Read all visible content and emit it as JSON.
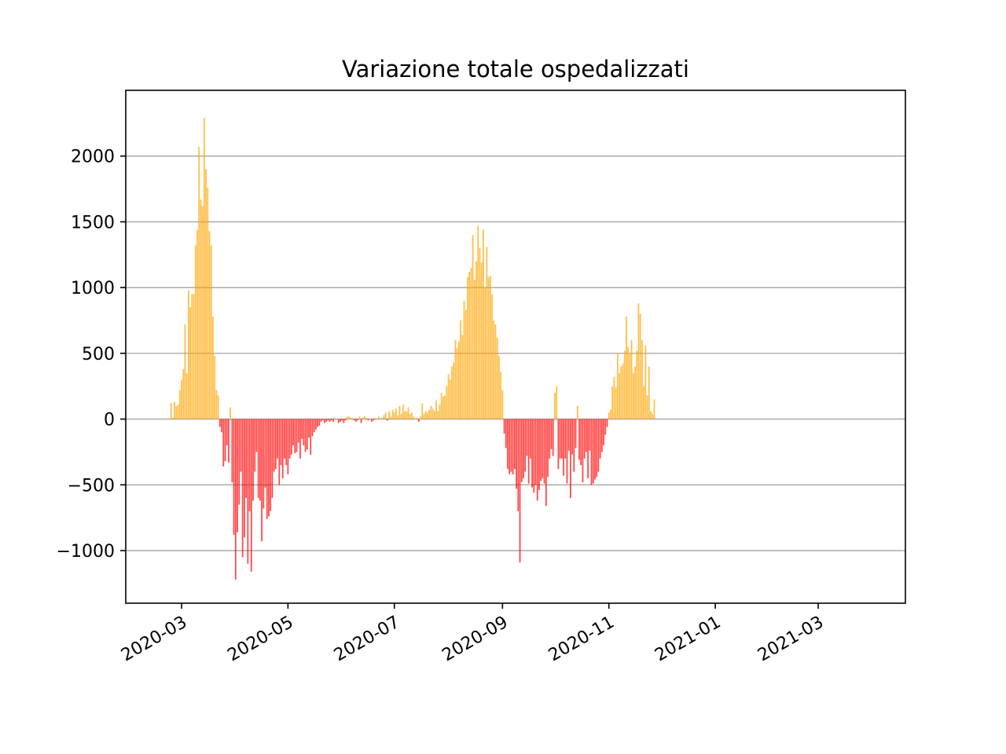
{
  "chart_data": {
    "type": "bar",
    "title": "Variazione totale ospedalizzati",
    "xlabel": "",
    "ylabel": "",
    "x_start": "2020-02-24",
    "x_end": "2021-03-29",
    "xlim": [
      "2020-01-29",
      "2021-04-20"
    ],
    "ylim": [
      -1400,
      2500
    ],
    "grid": {
      "x": false,
      "y": true
    },
    "yticks": [
      -1000,
      -500,
      0,
      500,
      1000,
      1500,
      2000
    ],
    "ytick_labels": [
      "−1000",
      "−500",
      "0",
      "500",
      "1000",
      "1500",
      "2000"
    ],
    "xticks": [
      "2020-03-01",
      "2020-05-01",
      "2020-07-01",
      "2020-09-01",
      "2020-11-01",
      "2021-01-01",
      "2021-03-01"
    ],
    "xtick_labels": [
      "2020-03",
      "2020-05",
      "2020-07",
      "2020-09",
      "2020-11",
      "2021-01",
      "2021-03"
    ],
    "colors": {
      "positive": "#ffa500",
      "negative": "#ff0000"
    },
    "values": [
      120,
      10,
      130,
      100,
      110,
      220,
      300,
      380,
      720,
      350,
      980,
      850,
      950,
      950,
      1320,
      1440,
      2070,
      1670,
      1620,
      2290,
      1900,
      1760,
      1430,
      1320,
      780,
      480,
      220,
      180,
      -60,
      -100,
      -360,
      -320,
      -200,
      -330,
      90,
      -480,
      -880,
      -1220,
      -860,
      -650,
      -400,
      -1050,
      -900,
      -600,
      -1100,
      -700,
      -1160,
      -620,
      -400,
      -250,
      -600,
      -620,
      -930,
      -680,
      -520,
      -760,
      -740,
      -700,
      -600,
      -400,
      -380,
      -300,
      -500,
      -350,
      -450,
      -300,
      -350,
      -420,
      -300,
      -270,
      -200,
      -260,
      -250,
      -180,
      -300,
      -150,
      -200,
      -250,
      -230,
      -140,
      -270,
      -130,
      -100,
      -80,
      -60,
      -50,
      -20,
      -10,
      -30,
      -20,
      -10,
      -20,
      -10,
      -20,
      10,
      0,
      -30,
      -20,
      -10,
      -30,
      -10,
      20,
      20,
      10,
      10,
      -10,
      -20,
      -10,
      20,
      -30,
      10,
      20,
      10,
      -10,
      0,
      -20,
      -10,
      10,
      0,
      20,
      0,
      10,
      30,
      50,
      -10,
      60,
      20,
      70,
      50,
      80,
      30,
      100,
      40,
      110,
      60,
      60,
      90,
      40,
      50,
      20,
      0,
      10,
      -20,
      20,
      120,
      40,
      60,
      50,
      70,
      100,
      80,
      60,
      140,
      60,
      110,
      200,
      170,
      180,
      250,
      340,
      300,
      400,
      430,
      600,
      540,
      590,
      750,
      640,
      900,
      830,
      1080,
      1120,
      1150,
      1400,
      1060,
      1200,
      1470,
      1300,
      1190,
      1440,
      1000,
      1310,
      1080,
      1090,
      950,
      750,
      720,
      620,
      480,
      360,
      220,
      -110,
      -220,
      -380,
      -420,
      -400,
      -420,
      -380,
      -530,
      -700,
      -1090,
      -480,
      -450,
      -400,
      -280,
      -490,
      -300,
      -520,
      -560,
      -500,
      -620,
      -540,
      -470,
      -450,
      -490,
      -660,
      -440,
      -300,
      -230,
      -280,
      200,
      250,
      -380,
      -300,
      -300,
      -430,
      -300,
      -490,
      -240,
      -600,
      -270,
      -400,
      -220,
      100,
      -310,
      -350,
      -480,
      -300,
      -250,
      -450,
      -240,
      -500,
      -490,
      -460,
      -440,
      -400,
      -300,
      -250,
      -200,
      -120,
      -60,
      50,
      70,
      250,
      320,
      240,
      500,
      350,
      400,
      420,
      520,
      780,
      550,
      500,
      600,
      350,
      400,
      520,
      880,
      800,
      600,
      250,
      560,
      180,
      400,
      60,
      40,
      150
    ]
  }
}
